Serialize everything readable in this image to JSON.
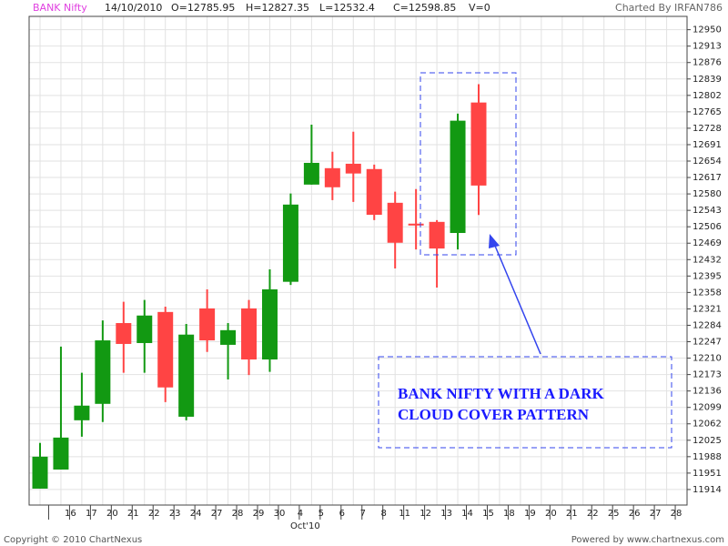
{
  "chart_data": {
    "type": "candlestick",
    "title": "BANK Nifty",
    "header": [
      "14/10/2010",
      "O=12785.95",
      "H=12827.35",
      "L=12532.4",
      "C=12598.85",
      "V=0"
    ],
    "credit": "Charted By IRFAN786",
    "footer_left": "Copyright © 2010 ChartNexus",
    "footer_right": "Powered by www.chartnexus.com",
    "month_label": "Oct'10",
    "annotation": [
      "BANK NIFTY WITH A DARK",
      "CLOUD COVER PATTERN"
    ],
    "categories": [
      null,
      "16",
      "17",
      "20",
      "21",
      "22",
      "23",
      "24",
      "27",
      "28",
      "29",
      "30",
      "4",
      "5",
      "6",
      "7",
      "8",
      "11",
      "12",
      "13",
      "14",
      "15",
      "18",
      "19",
      "20",
      "21",
      "22",
      "25",
      "26",
      "27",
      "28"
    ],
    "open": [
      11916,
      11959,
      12070,
      12107,
      12289,
      12244,
      12314,
      12078,
      12322,
      12240,
      12322,
      12207,
      12382,
      12601,
      12638,
      12648,
      12636,
      12560,
      12513,
      12517,
      12492,
      12785.95,
      null,
      null,
      null,
      null,
      null,
      null,
      null,
      null,
      null
    ],
    "high": [
      12019,
      12236,
      12177,
      12295,
      12337,
      12341,
      12326,
      12287,
      12365,
      12289,
      12341,
      12410,
      12581,
      12736,
      12675,
      12720,
      12646,
      12585,
      12591,
      12521,
      12761,
      12827.35,
      null,
      null,
      null,
      null,
      null,
      null,
      null,
      null,
      null
    ],
    "low": [
      11916,
      11959,
      12033,
      12066,
      12177,
      12177,
      12111,
      12070,
      12224,
      12162,
      12172,
      12179,
      12375,
      12601,
      12566,
      12562,
      12521,
      12412,
      12455,
      12369,
      12455,
      12532.4,
      null,
      null,
      null,
      null,
      null,
      null,
      null,
      null,
      null
    ],
    "close": [
      11988,
      12031,
      12103,
      12250,
      12242,
      12306,
      12144,
      12263,
      12250,
      12273,
      12207,
      12365,
      12556,
      12650,
      12595,
      12626,
      12533,
      12470,
      12511,
      12457,
      12745,
      12598.85,
      null,
      null,
      null,
      null,
      null,
      null,
      null,
      null,
      null
    ],
    "up_color": "#129912",
    "down_color": "#ff4444",
    "ylim": [
      11879,
      12980
    ],
    "yticks": [
      11914,
      11951,
      11988,
      12025,
      12062,
      12099,
      12136,
      12173,
      12210,
      12247,
      12284,
      12321,
      12358,
      12395,
      12432,
      12469,
      12506,
      12543,
      12580,
      12617,
      12654,
      12691,
      12728,
      12765,
      12802,
      12839,
      12876,
      12913,
      12950
    ],
    "grid": true
  }
}
